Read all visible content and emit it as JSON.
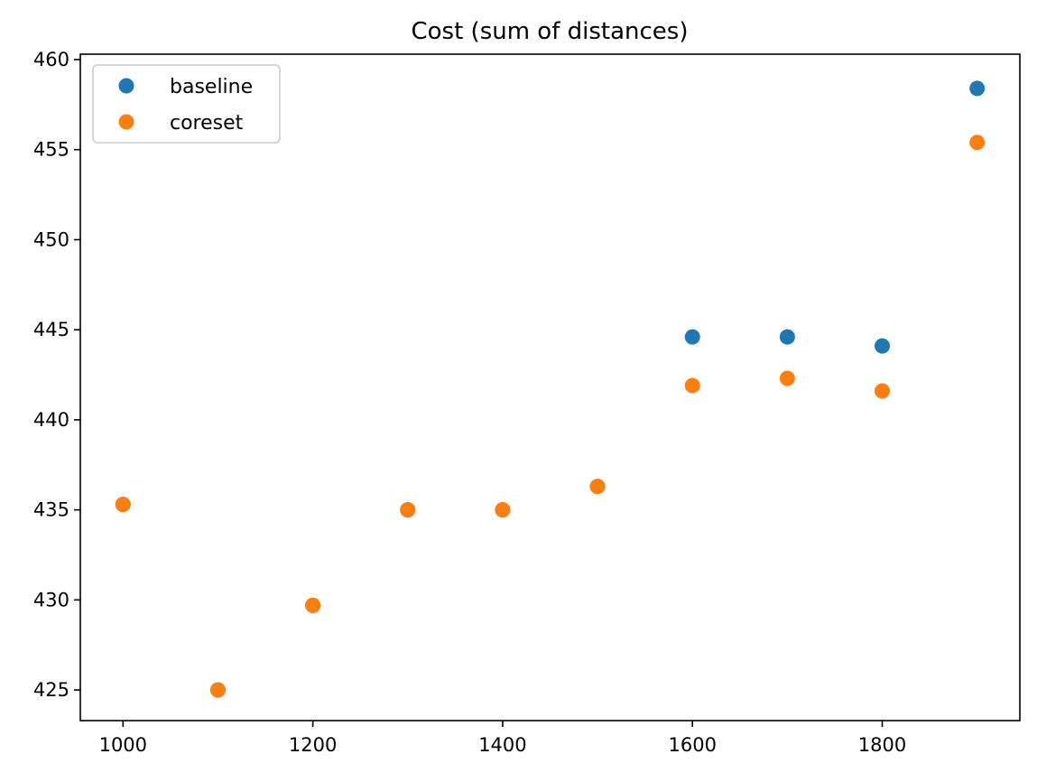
{
  "chart_data": {
    "type": "scatter",
    "title": "Cost (sum of distances)",
    "xlabel": "",
    "ylabel": "",
    "xlim": [
      955,
      1945
    ],
    "ylim": [
      423.3,
      460.3
    ],
    "xticks": [
      1000,
      1200,
      1400,
      1600,
      1800
    ],
    "yticks": [
      425,
      430,
      435,
      440,
      445,
      450,
      455,
      460
    ],
    "grid": false,
    "legend_position": "upper-left",
    "series": [
      {
        "name": "baseline",
        "color": "#1f77b4",
        "x": [
          1000,
          1100,
          1200,
          1300,
          1400,
          1500,
          1600,
          1700,
          1800,
          1900
        ],
        "y": [
          435.3,
          425.0,
          429.7,
          435.0,
          435.0,
          436.3,
          444.6,
          444.6,
          444.1,
          458.4
        ]
      },
      {
        "name": "coreset",
        "color": "#ff7f0e",
        "x": [
          1000,
          1100,
          1200,
          1300,
          1400,
          1500,
          1600,
          1700,
          1800,
          1900
        ],
        "y": [
          435.3,
          425.0,
          429.7,
          435.0,
          435.0,
          436.3,
          441.9,
          442.3,
          441.6,
          455.4
        ]
      }
    ]
  }
}
